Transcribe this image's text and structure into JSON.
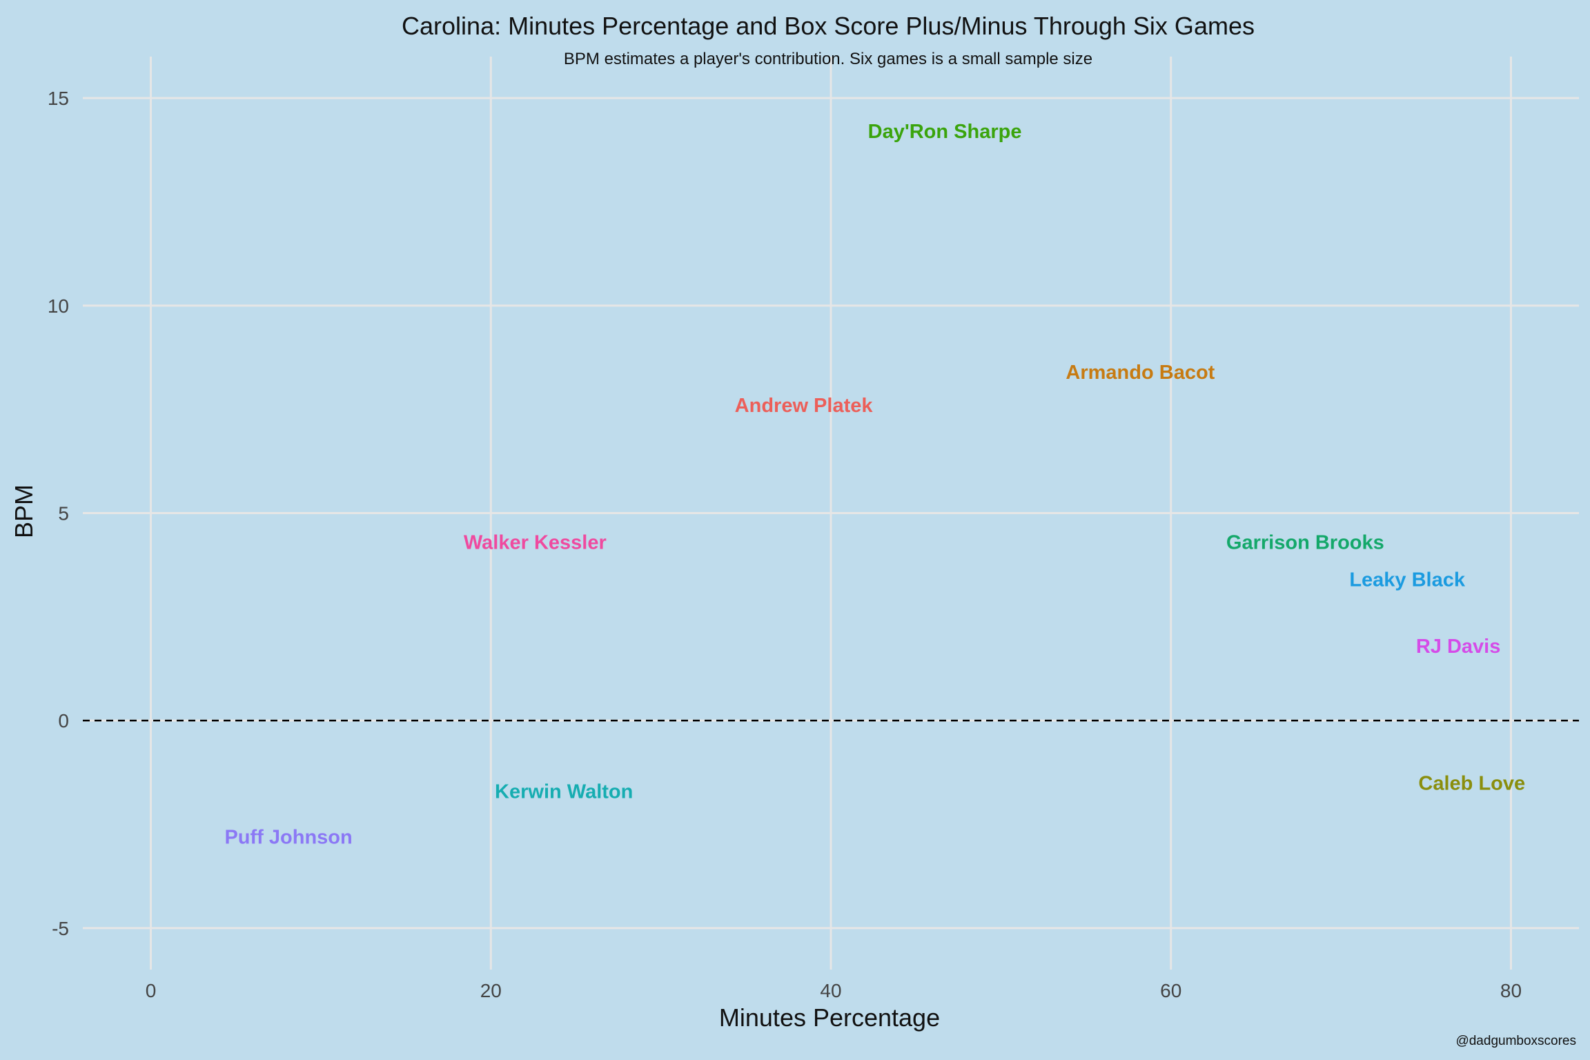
{
  "chart_data": {
    "type": "scatter",
    "title": "Carolina: Minutes Percentage and Box Score Plus/Minus Through Six Games",
    "subtitle": "BPM estimates a player's contribution. Six games is a small sample size",
    "xlabel": "Minutes Percentage",
    "ylabel": "BPM",
    "caption": "@dadgumboxscores",
    "xlim": [
      -4,
      84
    ],
    "ylim": [
      -6,
      16
    ],
    "x_ticks": [
      0,
      20,
      40,
      60,
      80
    ],
    "y_ticks": [
      -5,
      0,
      5,
      10,
      15
    ],
    "x_tick_labels": [
      "0",
      "20",
      "40",
      "60",
      "80"
    ],
    "y_tick_labels": [
      "-5",
      "0",
      "5",
      "10",
      "15"
    ],
    "grid": true,
    "reference_line": {
      "y": 0,
      "style": "dashed",
      "color": "#000000"
    },
    "points": [
      {
        "label": "Day'Ron Sharpe",
        "x": 46.7,
        "y": 14.2,
        "color": "#3aa40c"
      },
      {
        "label": "Armando Bacot",
        "x": 58.2,
        "y": 8.4,
        "color": "#c77b12"
      },
      {
        "label": "Andrew Platek",
        "x": 38.4,
        "y": 7.6,
        "color": "#ec5f59"
      },
      {
        "label": "Walker Kessler",
        "x": 22.6,
        "y": 4.3,
        "color": "#ef4a9f"
      },
      {
        "label": "Garrison Brooks",
        "x": 67.9,
        "y": 4.3,
        "color": "#14a86a"
      },
      {
        "label": "Leaky Black",
        "x": 73.9,
        "y": 3.4,
        "color": "#1b9be0"
      },
      {
        "label": "RJ Davis",
        "x": 76.9,
        "y": 1.8,
        "color": "#d54ce8"
      },
      {
        "label": "Caleb Love",
        "x": 77.7,
        "y": -1.5,
        "color": "#8a8e0d"
      },
      {
        "label": "Kerwin Walton",
        "x": 24.3,
        "y": -1.7,
        "color": "#16adb1"
      },
      {
        "label": "Puff Johnson",
        "x": 8.1,
        "y": -2.8,
        "color": "#8b78f5"
      }
    ]
  }
}
